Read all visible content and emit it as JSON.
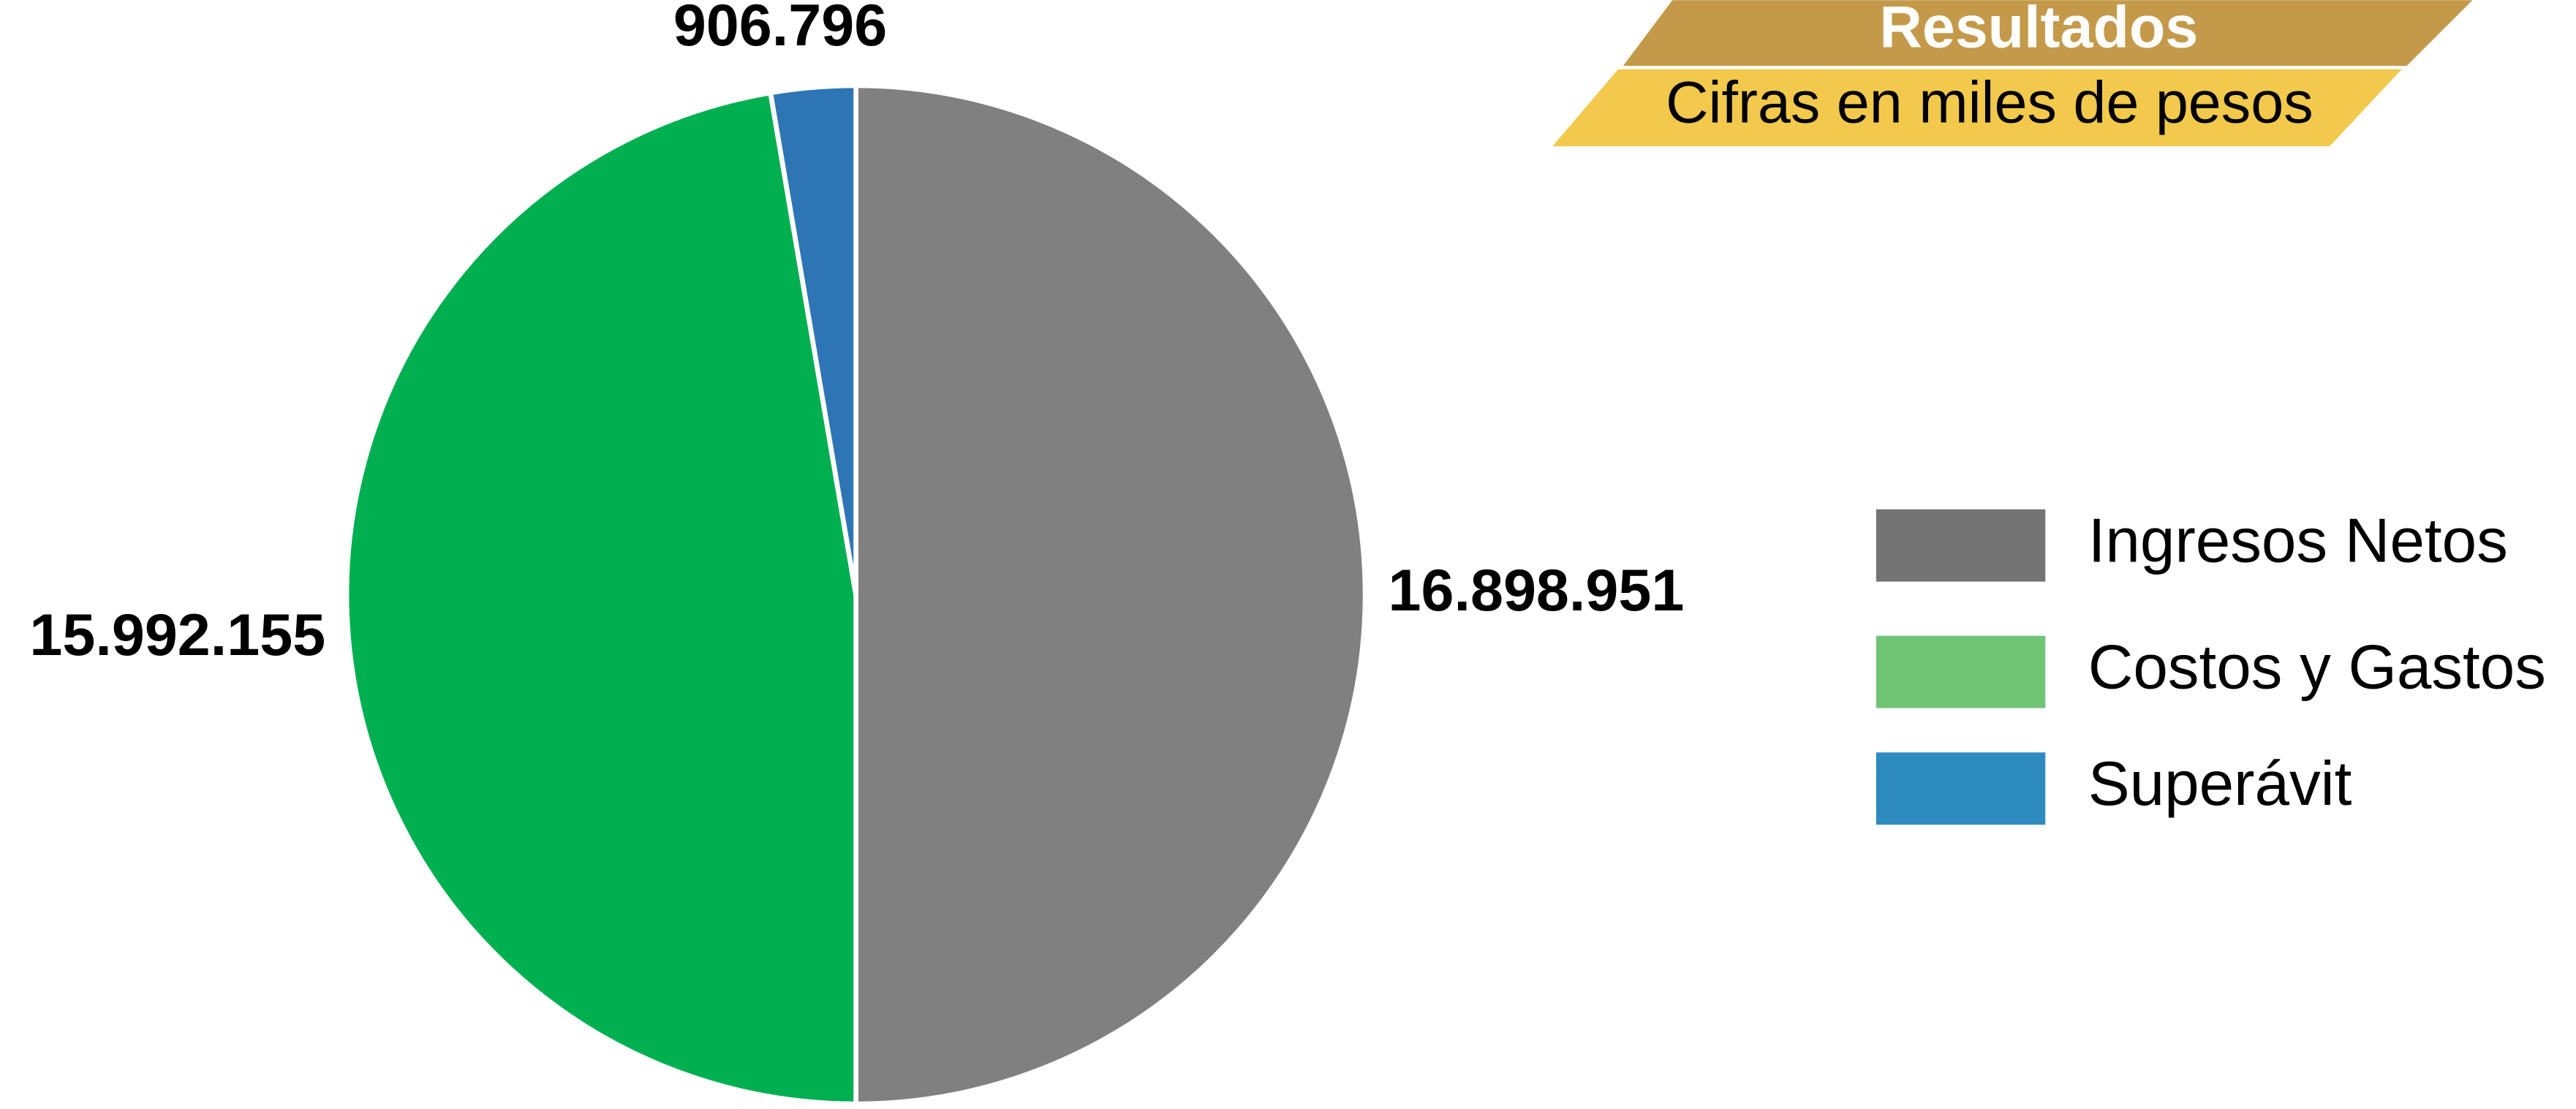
{
  "chart_data": {
    "type": "pie",
    "title": "Resultados",
    "subtitle": "Cifras en miles de pesos",
    "categories": [
      "Ingresos Netos",
      "Costos y Gastos",
      "Superávit"
    ],
    "values": [
      16898951,
      15992155,
      906796
    ],
    "value_labels": [
      "16.898.951",
      "15.992.155",
      "906.796"
    ],
    "colors": [
      "#808080",
      "#00af50",
      "#2e75b6"
    ],
    "legend_colors": [
      "#737373",
      "#70c476",
      "#2e8bc0"
    ],
    "legend": "right"
  }
}
